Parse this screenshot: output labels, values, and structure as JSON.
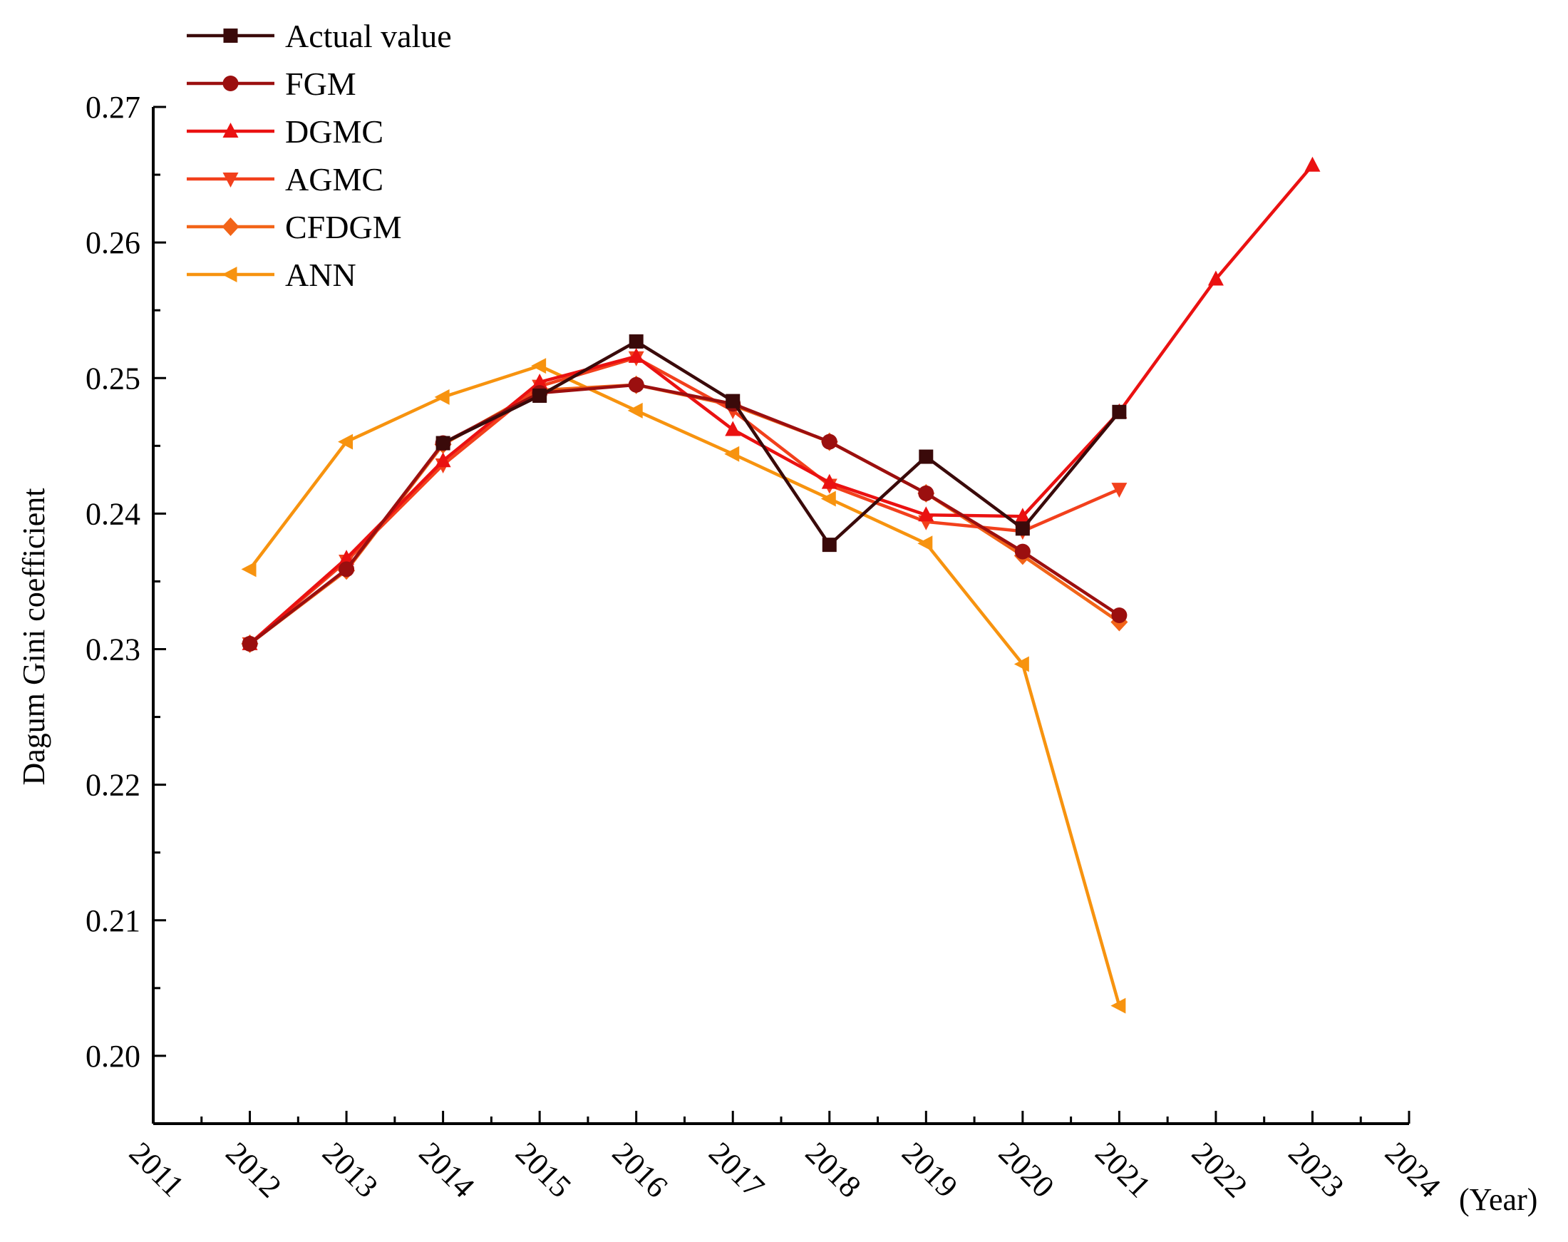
{
  "chart_data": {
    "type": "line",
    "title": "",
    "xlabel": "(Year)",
    "ylabel": "Dagum Gini coefficient",
    "xlim": [
      2011,
      2024
    ],
    "ylim": [
      0.195,
      0.27
    ],
    "grid": false,
    "legend_position": "top-left",
    "x_ticks": [
      2011,
      2012,
      2013,
      2014,
      2015,
      2016,
      2017,
      2018,
      2019,
      2020,
      2021,
      2022,
      2023,
      2024
    ],
    "x_tick_labels": [
      "2011",
      "2012",
      "2013",
      "2014",
      "2015",
      "2016",
      "2017",
      "2018",
      "2019",
      "2020",
      "2021",
      "2022",
      "2023",
      "2024"
    ],
    "y_ticks": [
      0.2,
      0.21,
      0.22,
      0.23,
      0.24,
      0.25,
      0.26,
      0.27
    ],
    "y_tick_labels": [
      "0.20",
      "0.21",
      "0.22",
      "0.23",
      "0.24",
      "0.25",
      "0.26",
      "0.27"
    ],
    "series": [
      {
        "name": "Actual value",
        "color": "#3a0a0a",
        "marker": "square",
        "x": [
          2014,
          2015,
          2016,
          2017,
          2018,
          2019,
          2020,
          2021
        ],
        "values": [
          0.2452,
          0.2487,
          0.2527,
          0.2483,
          0.2377,
          0.2442,
          0.2389,
          0.2475
        ]
      },
      {
        "name": "FGM",
        "color": "#9b0f0f",
        "marker": "circle",
        "x": [
          2012,
          2013,
          2014,
          2015,
          2016,
          2017,
          2018,
          2019,
          2020,
          2021
        ],
        "values": [
          0.2304,
          0.2359,
          0.2452,
          0.2489,
          0.2495,
          0.2481,
          0.2453,
          0.2415,
          0.2372,
          0.2325
        ]
      },
      {
        "name": "DGMC",
        "color": "#ea1111",
        "marker": "triangle-up",
        "x": [
          2012,
          2013,
          2014,
          2015,
          2016,
          2017,
          2018,
          2019,
          2020,
          2021,
          2022,
          2023
        ],
        "values": [
          0.2304,
          0.2367,
          0.2439,
          0.2497,
          0.2516,
          0.2462,
          0.2423,
          0.2399,
          0.2398,
          0.2475,
          0.2573,
          0.2657
        ]
      },
      {
        "name": "AGMC",
        "color": "#f2401c",
        "marker": "triangle-down",
        "x": [
          2012,
          2013,
          2014,
          2015,
          2016,
          2017,
          2018,
          2019,
          2020,
          2021
        ],
        "values": [
          0.2304,
          0.2365,
          0.2436,
          0.2494,
          0.2515,
          0.2476,
          0.2421,
          0.2394,
          0.2387,
          0.2418
        ]
      },
      {
        "name": "CFDGM",
        "color": "#f26418",
        "marker": "diamond",
        "x": [
          2012,
          2013,
          2014,
          2015,
          2016,
          2017,
          2018,
          2019,
          2020,
          2021
        ],
        "values": [
          0.2304,
          0.2358,
          0.2451,
          0.2491,
          0.2495,
          0.248,
          0.2453,
          0.2415,
          0.2369,
          0.232
        ]
      },
      {
        "name": "ANN",
        "color": "#f7930f",
        "marker": "triangle-left",
        "x": [
          2012,
          2013,
          2014,
          2015,
          2016,
          2017,
          2018,
          2019,
          2020,
          2021
        ],
        "values": [
          0.2359,
          0.2453,
          0.2486,
          0.2509,
          0.2476,
          0.2444,
          0.2411,
          0.2378,
          0.2289,
          0.2037
        ]
      }
    ]
  }
}
